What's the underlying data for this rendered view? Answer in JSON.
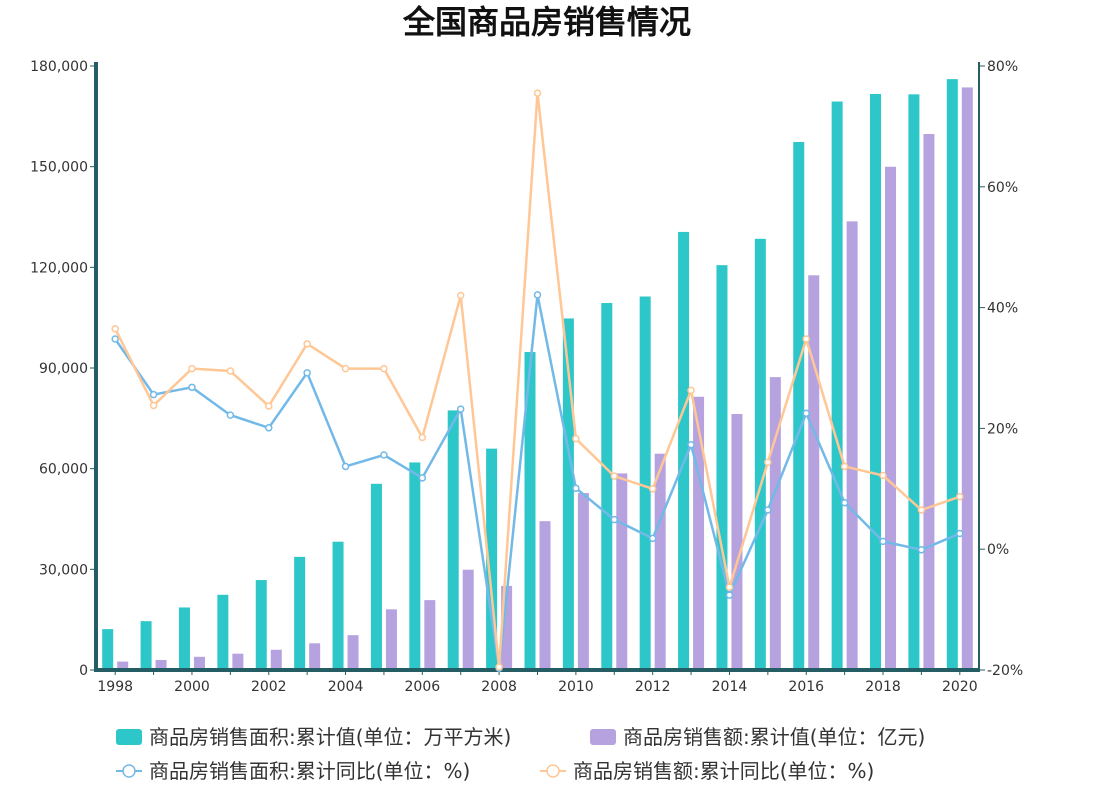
{
  "chart_data": {
    "type": "bar",
    "title": "全国商品房销售情况",
    "x": [
      "1998",
      "1999",
      "2000",
      "2001",
      "2002",
      "2003",
      "2004",
      "2005",
      "2006",
      "2007",
      "2008",
      "2009",
      "2010",
      "2011",
      "2012",
      "2013",
      "2014",
      "2015",
      "2016",
      "2017",
      "2018",
      "2019",
      "2020"
    ],
    "x_tick_labels": [
      "1998",
      "2000",
      "2002",
      "2004",
      "2006",
      "2008",
      "2010",
      "2012",
      "2014",
      "2016",
      "2018",
      "2020"
    ],
    "y_left": {
      "range": [
        0,
        180000
      ],
      "ticks": [
        0,
        30000,
        60000,
        90000,
        120000,
        150000,
        180000
      ],
      "tick_labels": [
        "0",
        "30,000",
        "60,000",
        "90,000",
        "120,000",
        "150,000",
        "180,000"
      ]
    },
    "y_right": {
      "range": [
        -20,
        80
      ],
      "ticks": [
        -20,
        0,
        20,
        40,
        60,
        80
      ],
      "tick_labels": [
        "-20%",
        "0%",
        "20%",
        "40%",
        "60%",
        "80%"
      ]
    },
    "grid": false,
    "legend_position": "bottom",
    "series": [
      {
        "name": "商品房销售面积:累计值(单位：万平方米)",
        "kind": "bar",
        "axis": "left",
        "color": "#2ec7c9",
        "values": [
          12185,
          14557,
          18637,
          22412,
          26808,
          33718,
          38232,
          55486,
          61857,
          77355,
          65970,
          94755,
          104765,
          109367,
          111304,
          130551,
          120649,
          128495,
          157349,
          169408,
          171654,
          171558,
          176086
        ]
      },
      {
        "name": "商品房销售额:累计值(单位：亿元)",
        "kind": "bar",
        "axis": "left",
        "color": "#b6a2de",
        "values": [
          2513,
          2988,
          3935,
          4863,
          6032,
          7955,
          10376,
          18080,
          20826,
          29889,
          25068,
          44355,
          52721,
          58589,
          64456,
          81428,
          76292,
          87281,
          117627,
          133701,
          149973,
          159725,
          173613
        ]
      },
      {
        "name": "商品房销售面积:累计同比(单位：%)",
        "kind": "line",
        "axis": "right",
        "color": "#73b9e8",
        "values": [
          34.8,
          25.6,
          26.8,
          22.2,
          20.1,
          29.2,
          13.7,
          15.6,
          11.8,
          23.2,
          -19.7,
          42.1,
          10.1,
          4.9,
          1.8,
          17.3,
          -7.6,
          6.5,
          22.5,
          7.7,
          1.3,
          -0.1,
          2.6
        ]
      },
      {
        "name": "商品房销售额:累计同比(单位：%)",
        "kind": "line",
        "axis": "right",
        "color": "#ffc795",
        "values": [
          36.5,
          23.8,
          29.9,
          29.5,
          23.7,
          34.0,
          29.9,
          29.9,
          18.5,
          42.0,
          -19.5,
          75.5,
          18.3,
          12.1,
          10.0,
          26.3,
          -6.3,
          14.4,
          34.8,
          13.7,
          12.2,
          6.5,
          8.7
        ]
      }
    ]
  }
}
